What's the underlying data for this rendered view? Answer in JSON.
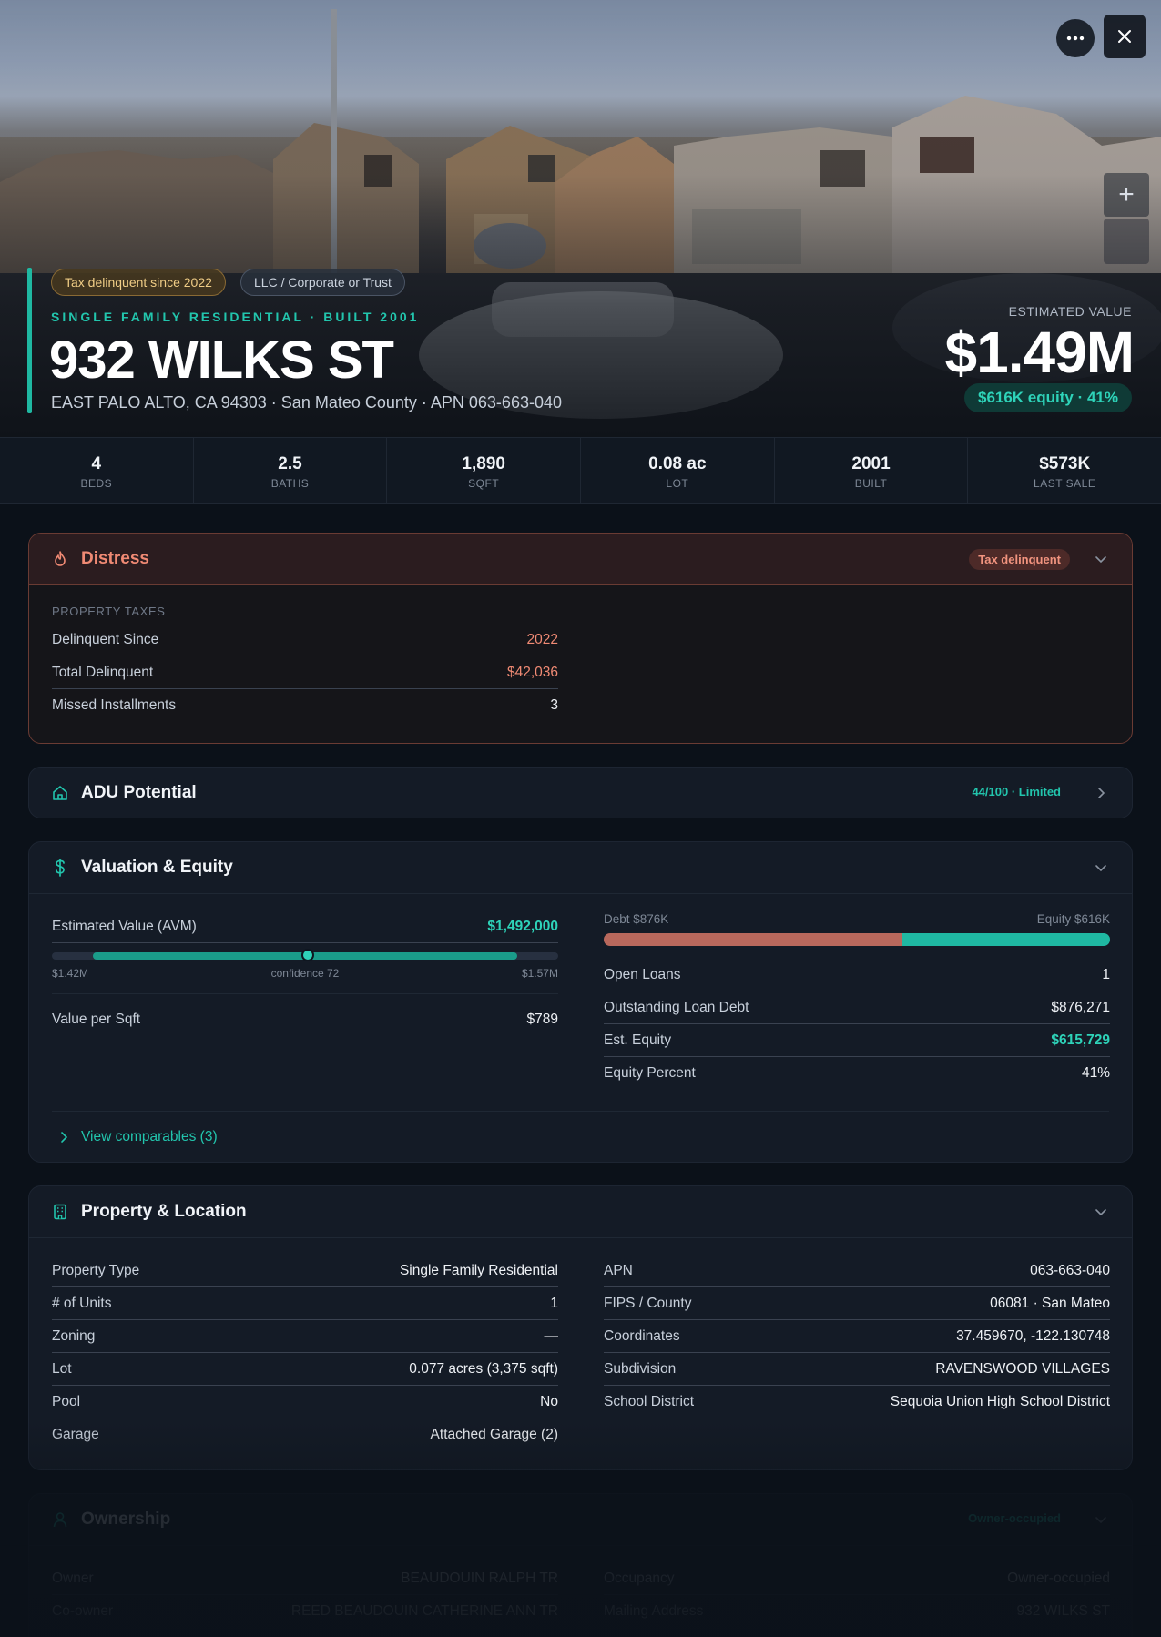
{
  "hero": {
    "tags": [
      "Tax delinquent since 2022",
      "LLC / Corporate or Trust"
    ],
    "subtitle": "SINGLE FAMILY RESIDENTIAL · BUILT 2001",
    "address": "932 WILKS ST",
    "address_sub": "EAST PALO ALTO, CA 94303 · San Mateo County · APN 063-663-040",
    "estimated_label": "ESTIMATED VALUE",
    "estimated_value": "$1.49M",
    "equity_pill": "$616K equity · 41%",
    "actions": {
      "more_icon": "more-horizontal-icon",
      "close_icon": "close-icon",
      "zoom_icon": "plus-icon",
      "zoom_label": "+"
    }
  },
  "stats": [
    {
      "value": "4",
      "label": "BEDS"
    },
    {
      "value": "2.5",
      "label": "BATHS"
    },
    {
      "value": "1,890",
      "label": "SQFT"
    },
    {
      "value": "0.08 ac",
      "label": "LOT"
    },
    {
      "value": "2001",
      "label": "BUILT"
    },
    {
      "value": "$573K",
      "label": "LAST SALE"
    }
  ],
  "distress": {
    "title": "Distress",
    "icon": "flame-icon",
    "badge": "Tax delinquent",
    "section": "PROPERTY TAXES",
    "rows": [
      {
        "label": "Delinquent Since",
        "value": "2022"
      },
      {
        "label": "Total Delinquent",
        "value": "$42,036"
      },
      {
        "label": "Missed Installments",
        "value": "3"
      }
    ]
  },
  "adu": {
    "title": "ADU Potential",
    "icon": "home-icon",
    "badge": "44/100 · Limited"
  },
  "valuation": {
    "title": "Valuation & Equity",
    "icon": "dollar-icon",
    "avm_label": "Estimated Value (AVM)",
    "avm_value": "$1,492,000",
    "range_low": "$1.42M",
    "range_mid": "confidence 72",
    "range_high": "$1.57M",
    "vps_label": "Value per Sqft",
    "vps_value": "$789",
    "debt_label": "Debt $876K",
    "equity_label": "Equity $616K",
    "debt_fraction": 0.59,
    "rows": [
      {
        "label": "Open Loans",
        "value": "1"
      },
      {
        "label": "Outstanding Loan Debt",
        "value": "$876,271"
      },
      {
        "label": "Est. Equity",
        "value": "$615,729"
      },
      {
        "label": "Equity Percent",
        "value": "41%"
      }
    ],
    "comps_link": "View comparables (3)"
  },
  "property": {
    "title": "Property & Location",
    "icon": "building-icon",
    "left": [
      {
        "label": "Property Type",
        "value": "Single Family Residential"
      },
      {
        "label": "# of Units",
        "value": "1"
      },
      {
        "label": "Zoning",
        "value": "—"
      },
      {
        "label": "Lot",
        "value": "0.077 acres (3,375 sqft)"
      },
      {
        "label": "Pool",
        "value": "No"
      },
      {
        "label": "Garage",
        "value": "Attached Garage (2)"
      }
    ],
    "right": [
      {
        "label": "APN",
        "value": "063-663-040"
      },
      {
        "label": "FIPS / County",
        "value": "06081 · San Mateo"
      },
      {
        "label": "Coordinates",
        "value": "37.459670, -122.130748"
      },
      {
        "label": "Subdivision",
        "value": "RAVENSWOOD VILLAGES"
      },
      {
        "label": "School District",
        "value": "Sequoia Union High School District"
      }
    ]
  },
  "ownership": {
    "title": "Ownership",
    "icon": "user-icon",
    "badge": "Owner-occupied",
    "left": [
      {
        "label": "Owner",
        "value": "BEAUDOUIN RALPH TR"
      },
      {
        "label": "Co-owner",
        "value": "REED BEAUDOUIN CATHERINE ANN TR"
      }
    ],
    "right": [
      {
        "label": "Occupancy",
        "value": "Owner-occupied"
      },
      {
        "label": "Mailing Address",
        "value": "932 WILKS ST"
      }
    ]
  }
}
